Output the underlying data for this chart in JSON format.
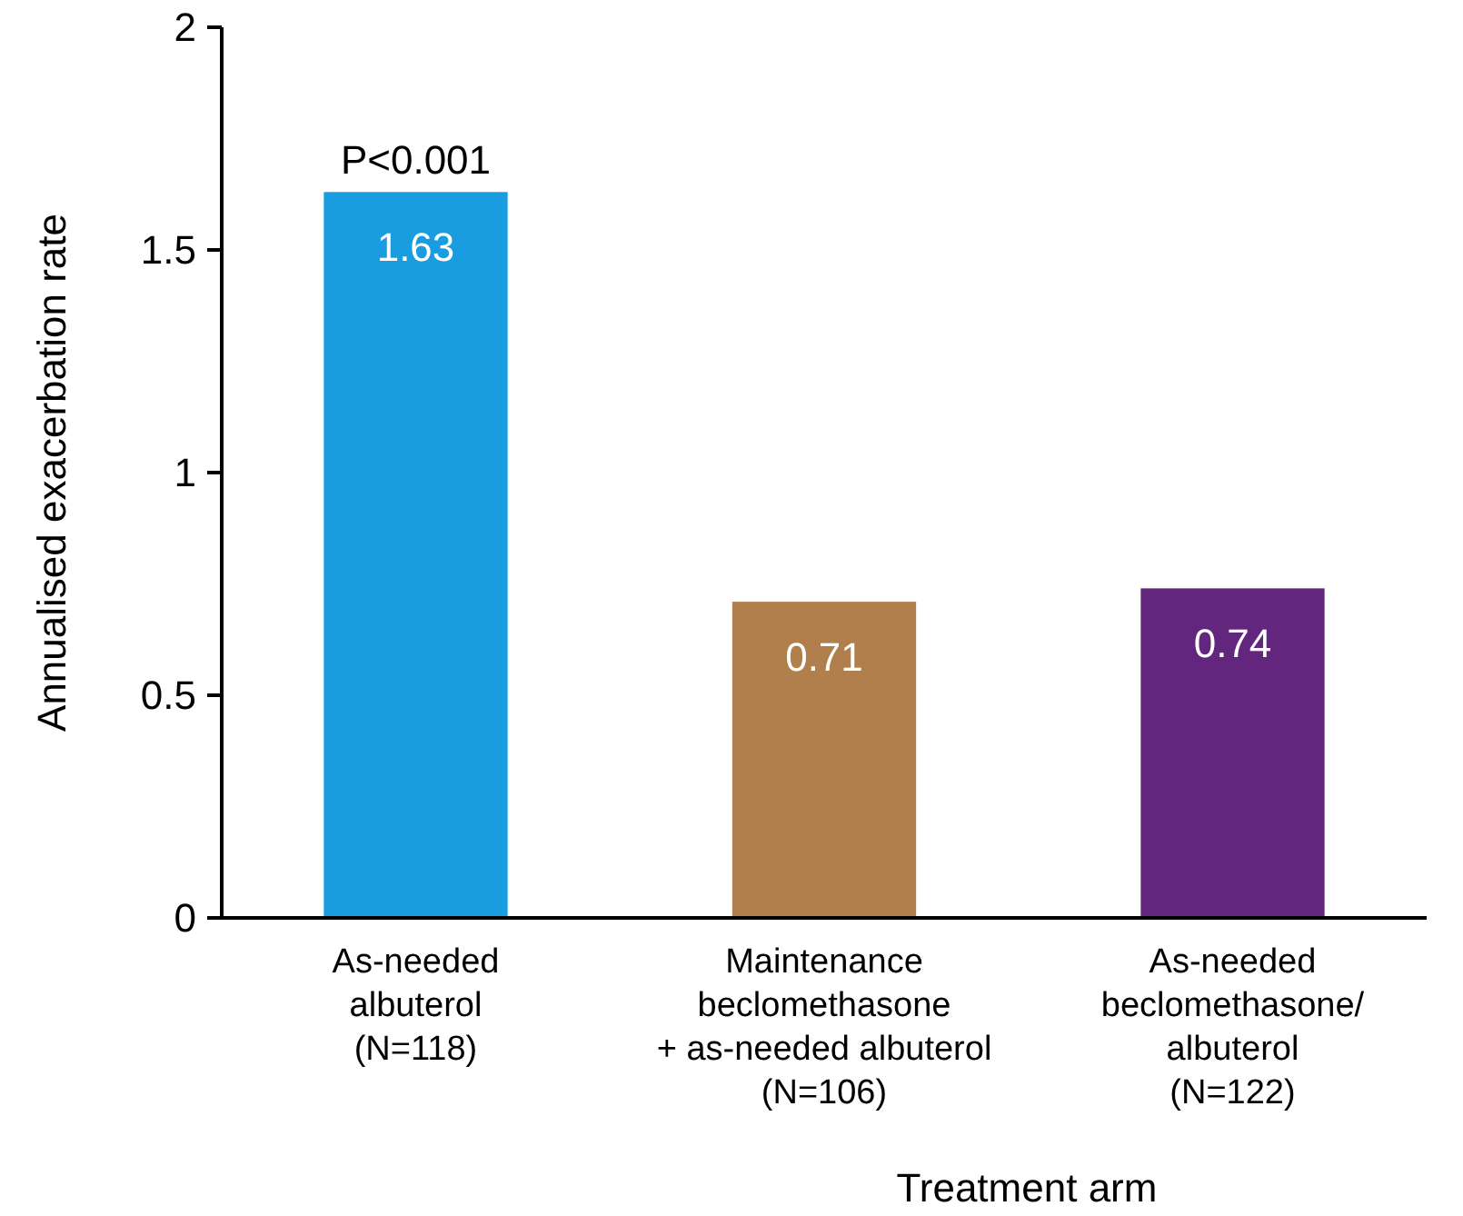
{
  "chart_data": {
    "type": "bar",
    "xlabel": "Treatment arm",
    "ylabel": "Annualised exacerbation rate",
    "categories": [
      "As-needed\nalbuterol\n(N=118)",
      "Maintenance\nbeclomethasone\n+ as-needed albuterol\n(N=106)",
      "As-needed\nbeclomethasone/\nalbuterol\n(N=122)"
    ],
    "values": [
      1.63,
      0.71,
      0.74
    ],
    "colors": [
      "#1a9de0",
      "#b07f4b",
      "#62267f"
    ],
    "ylim": [
      0,
      2
    ],
    "yticks": [
      0,
      0.5,
      1,
      1.5,
      2
    ],
    "grid": false,
    "data_labels": true,
    "annotations": [
      {
        "text": "P<0.001",
        "x": "As-needed\nalbuterol\n(N=118)",
        "y": 1.63
      }
    ]
  }
}
